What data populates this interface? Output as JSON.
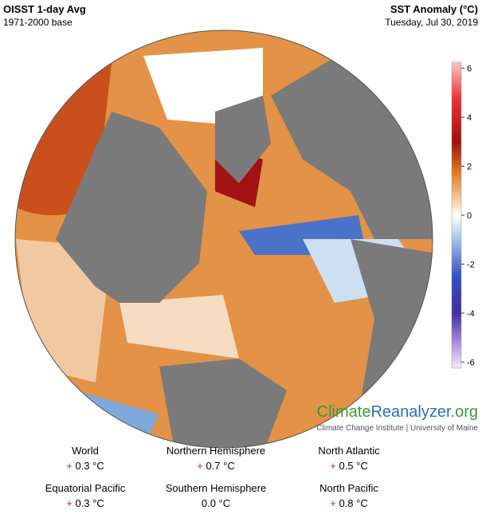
{
  "header": {
    "title": "OISST 1-day Avg",
    "subtitle": "1971-2000 base",
    "right_title": "SST Anomaly (°C)",
    "date": "Tuesday, Jul 30, 2019"
  },
  "colorbar": {
    "ticks": [
      6,
      4,
      2,
      0,
      -2,
      -4,
      -6
    ],
    "lim": [
      -6.25,
      6.25
    ]
  },
  "logo": {
    "parts": [
      "Climate",
      "Reanalyzer",
      ".org"
    ],
    "tagline": "Climate Change Institute | University of Maine"
  },
  "stats": [
    {
      "name": "World",
      "sign": "+",
      "value": "0.3 °C"
    },
    {
      "name": "Northern Hemisphere",
      "sign": "+",
      "value": "0.7 °C"
    },
    {
      "name": "North Atlantic",
      "sign": "+",
      "value": "0.5 °C"
    },
    {
      "name": "Equatorial Pacific",
      "sign": "+",
      "value": "0.3 °C"
    },
    {
      "name": "Southern Hemisphere",
      "sign": "",
      "value": "0.0 °C"
    },
    {
      "name": "North Pacific",
      "sign": "+",
      "value": "0.8 °C"
    }
  ]
}
